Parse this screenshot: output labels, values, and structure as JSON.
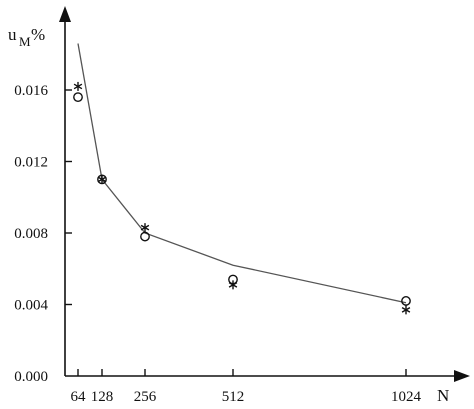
{
  "chart_data": {
    "type": "scatter",
    "xlabel": "N",
    "ylabel_main": "u",
    "ylabel_sub": "M",
    "ylabel_unit": "%",
    "x_ticks": [
      64,
      128,
      256,
      512,
      1024
    ],
    "x_tick_labels": [
      "64",
      "128",
      "256",
      "512",
      "1024"
    ],
    "y_ticks": [
      0.0,
      0.004,
      0.008,
      0.012,
      0.016
    ],
    "y_tick_labels": [
      "0.000",
      "0.004",
      "0.008",
      "0.012",
      "0.016"
    ],
    "xlim": [
      0,
      1150
    ],
    "ylim": [
      0,
      0.0205
    ],
    "grid": false,
    "series": [
      {
        "marker": "line",
        "points": [
          [
            64,
            0.0186
          ],
          [
            128,
            0.011
          ],
          [
            256,
            0.008
          ],
          [
            512,
            0.0062
          ],
          [
            1024,
            0.0041
          ]
        ]
      },
      {
        "marker": "circle",
        "points": [
          [
            64,
            0.0156
          ],
          [
            128,
            0.011
          ],
          [
            256,
            0.0078
          ],
          [
            512,
            0.0054
          ],
          [
            1024,
            0.0042
          ]
        ]
      },
      {
        "marker": "star",
        "points": [
          [
            64,
            0.0162
          ],
          [
            128,
            0.011
          ],
          [
            256,
            0.0083
          ],
          [
            512,
            0.0051
          ],
          [
            1024,
            0.0037
          ]
        ]
      }
    ]
  }
}
